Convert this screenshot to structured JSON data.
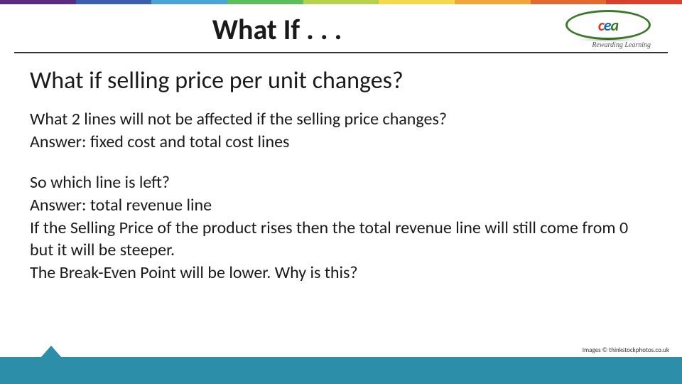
{
  "rainbow_colors": [
    "#5a2d82",
    "#3a5fae",
    "#49a6d4",
    "#5bbf5b",
    "#b6d24a",
    "#f6d94a",
    "#f2a63a",
    "#e36a2f",
    "#d9402c"
  ],
  "header": {
    "title": "What If . . .",
    "logo": {
      "letters": [
        "c",
        "e",
        "a"
      ],
      "tagline": "Rewarding Learning"
    }
  },
  "content": {
    "subheading": "What if selling price per unit changes?",
    "para1_q": "What 2 lines will not be affected if the selling price changes?",
    "para1_a": "Answer:  fixed cost and total cost lines",
    "para2_l1": "So which line is left?",
    "para2_l2": "Answer:  total revenue line",
    "para2_l3": "If the Selling Price of the product rises then the total revenue line will still come from 0 but it will be steeper.",
    "para2_l4": "The Break-Even Point will be lower.  Why is this?"
  },
  "footer": {
    "credit": "Images © thinkstockphotos.co.uk",
    "bar_color": "#2c8ea8"
  }
}
